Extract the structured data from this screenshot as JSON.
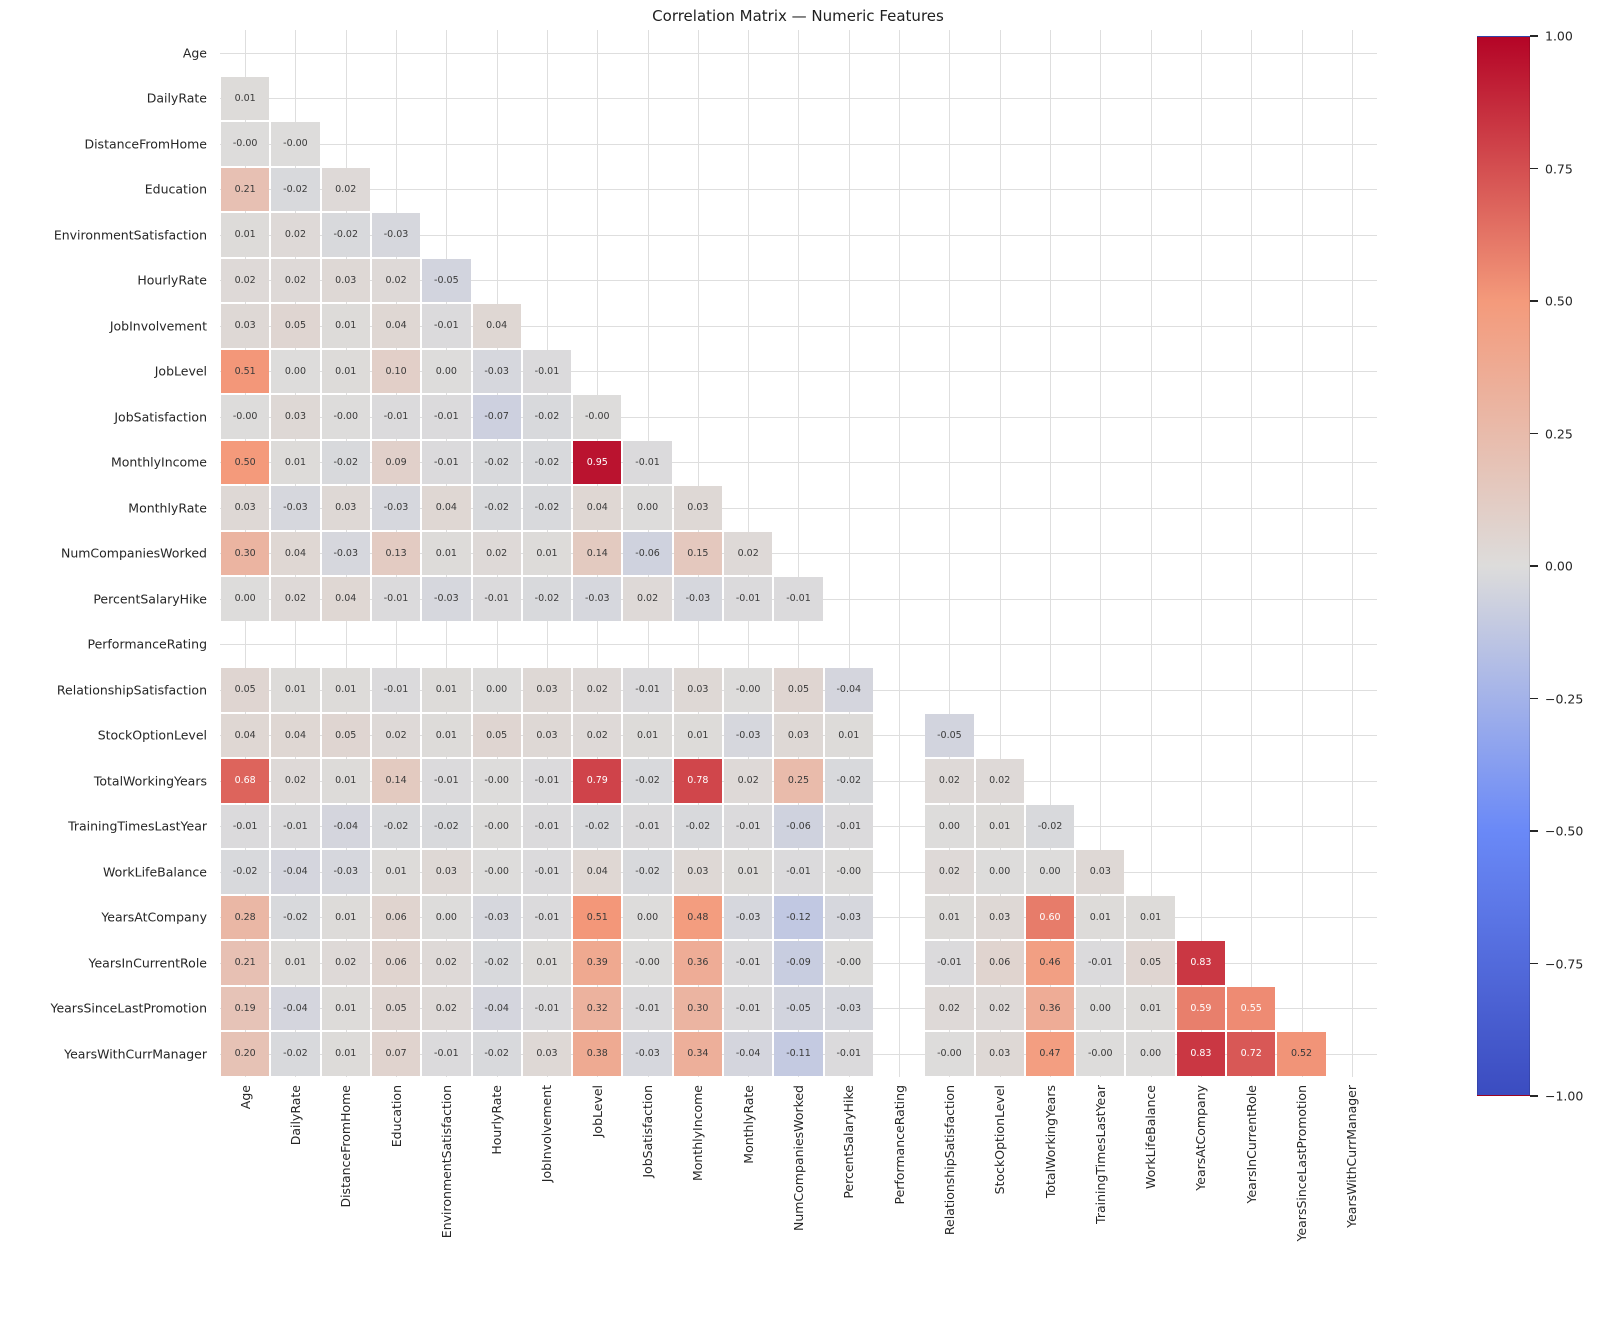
{
  "title": "Correlation Matrix — Numeric Features",
  "chart_data": {
    "type": "heatmap",
    "title": "Correlation Matrix — Numeric Features",
    "mask": "upper triangle and diagonal hidden; PerformanceRating row and column empty",
    "labels": [
      "Age",
      "DailyRate",
      "DistanceFromHome",
      "Education",
      "EnvironmentSatisfaction",
      "HourlyRate",
      "JobInvolvement",
      "JobLevel",
      "JobSatisfaction",
      "MonthlyIncome",
      "MonthlyRate",
      "NumCompaniesWorked",
      "PercentSalaryHike",
      "PerformanceRating",
      "RelationshipSatisfaction",
      "StockOptionLevel",
      "TotalWorkingYears",
      "TrainingTimesLastYear",
      "WorkLifeBalance",
      "YearsAtCompany",
      "YearsInCurrentRole",
      "YearsSinceLastPromotion",
      "YearsWithCurrManager"
    ],
    "rows": [
      [],
      [
        "0.01"
      ],
      [
        "-0.00",
        "-0.00"
      ],
      [
        "0.21",
        "-0.02",
        "0.02"
      ],
      [
        "0.01",
        "0.02",
        "-0.02",
        "-0.03"
      ],
      [
        "0.02",
        "0.02",
        "0.03",
        "0.02",
        "-0.05"
      ],
      [
        "0.03",
        "0.05",
        "0.01",
        "0.04",
        "-0.01",
        "0.04"
      ],
      [
        "0.51",
        "0.00",
        "0.01",
        "0.10",
        "0.00",
        "-0.03",
        "-0.01"
      ],
      [
        "-0.00",
        "0.03",
        "-0.00",
        "-0.01",
        "-0.01",
        "-0.07",
        "-0.02",
        "-0.00"
      ],
      [
        "0.50",
        "0.01",
        "-0.02",
        "0.09",
        "-0.01",
        "-0.02",
        "-0.02",
        "0.95",
        "-0.01"
      ],
      [
        "0.03",
        "-0.03",
        "0.03",
        "-0.03",
        "0.04",
        "-0.02",
        "-0.02",
        "0.04",
        "0.00",
        "0.03"
      ],
      [
        "0.30",
        "0.04",
        "-0.03",
        "0.13",
        "0.01",
        "0.02",
        "0.01",
        "0.14",
        "-0.06",
        "0.15",
        "0.02"
      ],
      [
        "0.00",
        "0.02",
        "0.04",
        "-0.01",
        "-0.03",
        "-0.01",
        "-0.02",
        "-0.03",
        "0.02",
        "-0.03",
        "-0.01",
        "-0.01"
      ],
      [],
      [
        "0.05",
        "0.01",
        "0.01",
        "-0.01",
        "0.01",
        "0.00",
        "0.03",
        "0.02",
        "-0.01",
        "0.03",
        "-0.00",
        "0.05",
        "-0.04"
      ],
      [
        "0.04",
        "0.04",
        "0.05",
        "0.02",
        "0.01",
        "0.05",
        "0.03",
        "0.02",
        "0.01",
        "0.01",
        "-0.03",
        "0.03",
        "0.01",
        null,
        "-0.05"
      ],
      [
        "0.68",
        "0.02",
        "0.01",
        "0.14",
        "-0.01",
        "-0.00",
        "-0.01",
        "0.79",
        "-0.02",
        "0.78",
        "0.02",
        "0.25",
        "-0.02",
        null,
        "0.02",
        "0.02"
      ],
      [
        "-0.01",
        "-0.01",
        "-0.04",
        "-0.02",
        "-0.02",
        "-0.00",
        "-0.01",
        "-0.02",
        "-0.01",
        "-0.02",
        "-0.01",
        "-0.06",
        "-0.01",
        null,
        "0.00",
        "0.01",
        "-0.02"
      ],
      [
        "-0.02",
        "-0.04",
        "-0.03",
        "0.01",
        "0.03",
        "-0.00",
        "-0.01",
        "0.04",
        "-0.02",
        "0.03",
        "0.01",
        "-0.01",
        "-0.00",
        null,
        "0.02",
        "0.00",
        "0.00",
        "0.03"
      ],
      [
        "0.28",
        "-0.02",
        "0.01",
        "0.06",
        "0.00",
        "-0.03",
        "-0.01",
        "0.51",
        "0.00",
        "0.48",
        "-0.03",
        "-0.12",
        "-0.03",
        null,
        "0.01",
        "0.03",
        "0.60",
        "0.01",
        "0.01"
      ],
      [
        "0.21",
        "0.01",
        "0.02",
        "0.06",
        "0.02",
        "-0.02",
        "0.01",
        "0.39",
        "-0.00",
        "0.36",
        "-0.01",
        "-0.09",
        "-0.00",
        null,
        "-0.01",
        "0.06",
        "0.46",
        "-0.01",
        "0.05",
        "0.83"
      ],
      [
        "0.19",
        "-0.04",
        "0.01",
        "0.05",
        "0.02",
        "-0.04",
        "-0.01",
        "0.32",
        "-0.01",
        "0.30",
        "-0.01",
        "-0.05",
        "-0.03",
        null,
        "0.02",
        "0.02",
        "0.36",
        "0.00",
        "0.01",
        "0.59",
        "0.55"
      ],
      [
        "0.20",
        "-0.02",
        "0.01",
        "0.07",
        "-0.01",
        "-0.02",
        "0.03",
        "0.38",
        "-0.03",
        "0.34",
        "-0.04",
        "-0.11",
        "-0.01",
        null,
        "-0.00",
        "0.03",
        "0.47",
        "-0.00",
        "0.00",
        "0.83",
        "0.72",
        "0.52"
      ]
    ],
    "vmin": -1,
    "vmax": 1,
    "grid": true,
    "legend_position": "right-colorbar",
    "colorbar_ticks": [
      "1.00",
      "0.75",
      "0.50",
      "0.25",
      "0.00",
      "−0.25",
      "−0.50",
      "−0.75",
      "−1.00"
    ],
    "colormap": {
      "name": "coolwarm",
      "stops": [
        [
          -1,
          59,
          76,
          192
        ],
        [
          -0.5,
          106,
          137,
          247
        ],
        [
          0,
          221,
          220,
          219
        ],
        [
          0.5,
          244,
          154,
          123
        ],
        [
          1,
          180,
          4,
          38
        ]
      ]
    },
    "annotation_colors": {
      "dark": "#3a3a3a",
      "light": "#ffffff",
      "light_text_threshold": 0.53
    }
  }
}
